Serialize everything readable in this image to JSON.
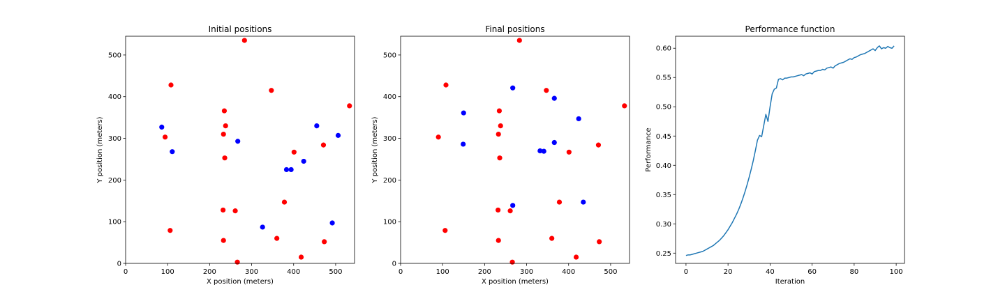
{
  "colors": {
    "red_points": "#ff0000",
    "blue_points": "#0000ff",
    "line": "#1f77b4",
    "axes": "#000000"
  },
  "chart_data": [
    {
      "type": "scatter",
      "title": "Initial positions",
      "xlabel": "X position (meters)",
      "ylabel": "Y position (meters)",
      "xlim": [
        0,
        545
      ],
      "ylim": [
        0,
        545
      ],
      "xticks": [
        0,
        100,
        200,
        300,
        400,
        500
      ],
      "yticks": [
        0,
        100,
        200,
        300,
        400,
        500
      ],
      "grid": false,
      "series": [
        {
          "color": "#ff0000",
          "points": [
            [
              283,
              535
            ],
            [
              108,
              428
            ],
            [
              347,
              415
            ],
            [
              533,
              378
            ],
            [
              235,
              366
            ],
            [
              238,
              330
            ],
            [
              94,
              303
            ],
            [
              233,
              310
            ],
            [
              401,
              267
            ],
            [
              471,
              284
            ],
            [
              236,
              253
            ],
            [
              378,
              147
            ],
            [
              232,
              128
            ],
            [
              261,
              126
            ],
            [
              106,
              79
            ],
            [
              233,
              55
            ],
            [
              360,
              60
            ],
            [
              473,
              52
            ],
            [
              418,
              15
            ],
            [
              266,
              3
            ]
          ]
        },
        {
          "color": "#0000ff",
          "points": [
            [
              86,
              327
            ],
            [
              111,
              268
            ],
            [
              267,
              293
            ],
            [
              455,
              330
            ],
            [
              506,
              307
            ],
            [
              424,
              245
            ],
            [
              383,
              225
            ],
            [
              394,
              225
            ],
            [
              326,
              87
            ],
            [
              492,
              97
            ]
          ]
        }
      ]
    },
    {
      "type": "scatter",
      "title": "Final positions",
      "xlabel": "X position (meters)",
      "ylabel": "Y position (meters)",
      "xlim": [
        0,
        545
      ],
      "ylim": [
        0,
        545
      ],
      "xticks": [
        0,
        100,
        200,
        300,
        400,
        500
      ],
      "yticks": [
        0,
        100,
        200,
        300,
        400,
        500
      ],
      "grid": false,
      "series": [
        {
          "color": "#ff0000",
          "points": [
            [
              283,
              535
            ],
            [
              108,
              428
            ],
            [
              347,
              415
            ],
            [
              533,
              378
            ],
            [
              235,
              366
            ],
            [
              238,
              330
            ],
            [
              90,
              303
            ],
            [
              233,
              310
            ],
            [
              401,
              267
            ],
            [
              471,
              284
            ],
            [
              236,
              253
            ],
            [
              378,
              147
            ],
            [
              232,
              128
            ],
            [
              261,
              126
            ],
            [
              106,
              79
            ],
            [
              233,
              55
            ],
            [
              360,
              60
            ],
            [
              473,
              52
            ],
            [
              418,
              15
            ],
            [
              266,
              3
            ]
          ]
        },
        {
          "color": "#0000ff",
          "points": [
            [
              267,
              421
            ],
            [
              150,
              361
            ],
            [
              366,
              396
            ],
            [
              424,
              347
            ],
            [
              149,
              286
            ],
            [
              366,
              290
            ],
            [
              332,
              270
            ],
            [
              341,
              269
            ],
            [
              267,
              139
            ],
            [
              435,
              147
            ]
          ]
        }
      ]
    },
    {
      "type": "line",
      "title": "Performance function",
      "xlabel": "Iteration",
      "ylabel": "Performance",
      "xlim": [
        -4.95,
        103.95
      ],
      "ylim": [
        0.2325,
        0.6205
      ],
      "xticks": [
        0,
        20,
        40,
        60,
        80,
        100
      ],
      "yticks": [
        0.25,
        0.3,
        0.35,
        0.4,
        0.45,
        0.5,
        0.55,
        0.6
      ],
      "ytick_labels": [
        "0.25",
        "0.30",
        "0.35",
        "0.40",
        "0.45",
        "0.50",
        "0.55",
        "0.60"
      ],
      "grid": false,
      "series": [
        {
          "color": "#1f77b4",
          "x": [
            0,
            1,
            2,
            3,
            4,
            5,
            6,
            7,
            8,
            9,
            10,
            11,
            12,
            13,
            14,
            15,
            16,
            17,
            18,
            19,
            20,
            21,
            22,
            23,
            24,
            25,
            26,
            27,
            28,
            29,
            30,
            31,
            32,
            33,
            34,
            35,
            36,
            37,
            38,
            39,
            40,
            41,
            42,
            43,
            44,
            45,
            46,
            47,
            48,
            49,
            50,
            51,
            52,
            53,
            54,
            55,
            56,
            57,
            58,
            59,
            60,
            61,
            62,
            63,
            64,
            65,
            66,
            67,
            68,
            69,
            70,
            71,
            72,
            73,
            74,
            75,
            76,
            77,
            78,
            79,
            80,
            81,
            82,
            83,
            84,
            85,
            86,
            87,
            88,
            89,
            90,
            91,
            92,
            93,
            94,
            95,
            96,
            97,
            98,
            99
          ],
          "y": [
            0.246,
            0.247,
            0.247,
            0.248,
            0.249,
            0.25,
            0.251,
            0.252,
            0.253,
            0.255,
            0.257,
            0.259,
            0.261,
            0.263,
            0.266,
            0.269,
            0.272,
            0.276,
            0.28,
            0.285,
            0.29,
            0.296,
            0.302,
            0.309,
            0.316,
            0.324,
            0.333,
            0.343,
            0.354,
            0.366,
            0.379,
            0.393,
            0.408,
            0.425,
            0.443,
            0.451,
            0.449,
            0.468,
            0.487,
            0.475,
            0.5,
            0.522,
            0.53,
            0.532,
            0.547,
            0.548,
            0.546,
            0.549,
            0.549,
            0.55,
            0.551,
            0.551,
            0.552,
            0.553,
            0.554,
            0.555,
            0.553,
            0.556,
            0.557,
            0.558,
            0.556,
            0.56,
            0.561,
            0.562,
            0.562,
            0.564,
            0.563,
            0.566,
            0.567,
            0.568,
            0.566,
            0.57,
            0.572,
            0.574,
            0.575,
            0.576,
            0.578,
            0.58,
            0.582,
            0.581,
            0.584,
            0.585,
            0.587,
            0.589,
            0.59,
            0.591,
            0.593,
            0.595,
            0.597,
            0.599,
            0.596,
            0.601,
            0.604,
            0.599,
            0.601,
            0.6,
            0.603,
            0.601,
            0.6,
            0.604
          ]
        }
      ]
    }
  ]
}
